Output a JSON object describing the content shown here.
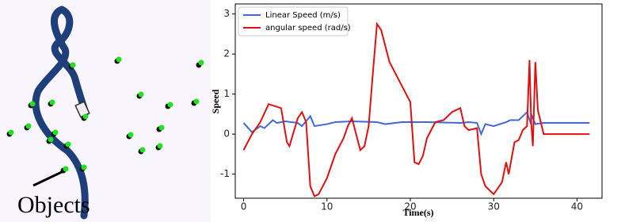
{
  "trajectory_panel": {
    "label": "Objects"
  },
  "chart_data": {
    "type": "line",
    "xlabel": "Time(s)",
    "ylabel": "Speed",
    "xlim": [
      -1,
      43
    ],
    "ylim": [
      -1.6,
      3.25
    ],
    "xticks": [
      0,
      10,
      20,
      30,
      40
    ],
    "yticks": [
      -1,
      0,
      1,
      2,
      3
    ],
    "legend": "upper left",
    "series": [
      {
        "name": "Linear Speed (m/s)",
        "color": "#4169d6",
        "x": [
          0,
          1,
          2,
          2.5,
          3.5,
          4,
          5,
          6.5,
          7,
          8,
          8.5,
          10,
          11,
          13,
          16,
          17,
          19,
          22,
          26,
          27,
          28,
          28.5,
          29,
          30,
          31.5,
          32,
          33,
          34,
          34.4,
          34.6,
          35,
          36,
          41.5
        ],
        "values": [
          0.28,
          0.05,
          0.2,
          0.15,
          0.35,
          0.28,
          0.32,
          0.28,
          0.2,
          0.45,
          0.2,
          0.25,
          0.3,
          0.32,
          0.3,
          0.25,
          0.3,
          0.3,
          0.28,
          0.3,
          0.28,
          0.0,
          0.25,
          0.2,
          0.3,
          0.35,
          0.35,
          0.55,
          0.3,
          0.45,
          0.25,
          0.28,
          0.28
        ]
      },
      {
        "name": "angular speed (rad/s)",
        "color": "#e01010",
        "x": [
          0,
          1,
          2,
          3,
          4.5,
          5.2,
          5.5,
          6.5,
          7,
          7.5,
          8,
          8.5,
          9,
          10,
          11,
          12,
          12.5,
          13,
          14,
          14.5,
          15,
          15.5,
          16,
          16.5,
          17,
          17.5,
          18,
          19,
          20,
          20.5,
          21,
          21.5,
          22,
          23,
          24,
          25,
          26,
          26.5,
          27,
          28,
          28.5,
          29,
          30,
          31,
          31.5,
          31.8,
          32.5,
          33,
          33.5,
          34,
          34.3,
          34.5,
          34.7,
          35,
          35.3,
          36,
          41.5
        ],
        "values": [
          -0.4,
          0,
          0.3,
          0.75,
          0.65,
          -0.2,
          -0.3,
          0.4,
          0.55,
          0.3,
          -1.3,
          -1.55,
          -1.5,
          -1.1,
          -0.5,
          -0.1,
          0.2,
          0.4,
          -0.4,
          -0.3,
          0.2,
          1.5,
          2.75,
          2.6,
          2.2,
          1.8,
          1.6,
          1.2,
          0.8,
          -0.7,
          -0.75,
          -0.55,
          -0.1,
          0.3,
          0.35,
          0.55,
          0.65,
          0.2,
          0.1,
          0.15,
          -1,
          -1.3,
          -1.5,
          -1.2,
          -0.7,
          -1.0,
          -0.2,
          -0.15,
          0.1,
          0.2,
          1.85,
          0.3,
          -0.3,
          1.8,
          0.6,
          0,
          0
        ]
      }
    ]
  }
}
